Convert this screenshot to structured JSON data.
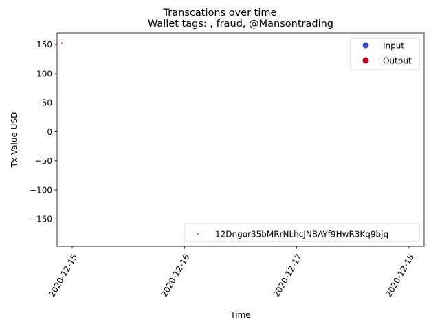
{
  "chart_data": {
    "type": "scatter",
    "suptitle": "Transcations over time",
    "title": "Wallet tags: , fraud, @Mansontrading",
    "xlabel": "Time",
    "ylabel": "Tx Value USD",
    "xlim": [
      "2020-12-14T20:45",
      "2020-12-18T03:15"
    ],
    "ylim": [
      -197,
      170
    ],
    "x_ticks": [
      "2020-12-15",
      "2020-12-16",
      "2020-12-17",
      "2020-12-18"
    ],
    "y_ticks": [
      150,
      100,
      50,
      0,
      -50,
      -100,
      -150
    ],
    "y_tick_labels": [
      "150",
      "100",
      "50",
      "0",
      "−50",
      "−100",
      "−150"
    ],
    "grid": false,
    "series": [
      {
        "name": "Output",
        "color": "#b40426",
        "points": [
          {
            "x": "2020-12-14T21:45",
            "y": 152.5
          }
        ]
      }
    ],
    "legend_types": {
      "placement": "top-right",
      "entries": [
        {
          "label": "Input",
          "color": "#3b4cc0"
        },
        {
          "label": "Output",
          "color": "#b40426"
        }
      ]
    },
    "legend_address": {
      "placement": "bottom-right",
      "label": "12Dngor35bMRrNLhcJNBAYf9HwR3Kq9bjq",
      "color": "#1f77b4"
    }
  }
}
